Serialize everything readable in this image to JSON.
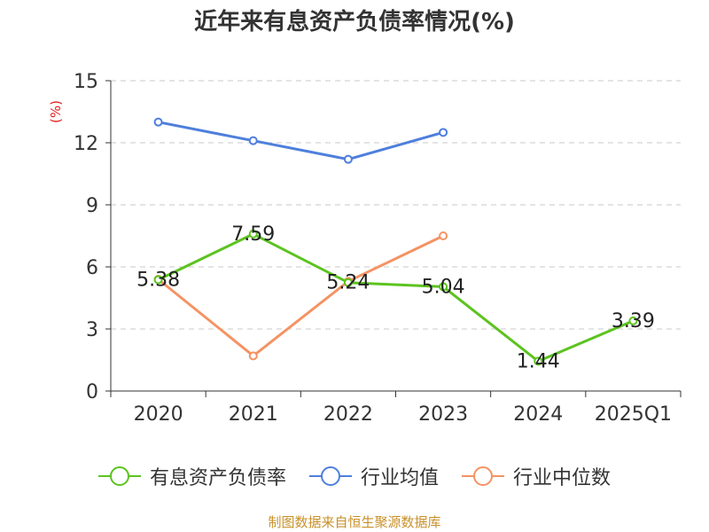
{
  "chart_data": {
    "type": "line",
    "title": "近年来有息资产负债率情况(%)",
    "ylabel": "(%)",
    "xlabel": "",
    "categories": [
      "2020",
      "2021",
      "2022",
      "2023",
      "2024",
      "2025Q1"
    ],
    "ylim": [
      0,
      15
    ],
    "yticks": [
      0,
      3,
      6,
      9,
      12,
      15
    ],
    "grid": true,
    "legend_position": "bottom",
    "series": [
      {
        "name": "有息资产负债率",
        "color": "#5cc31f",
        "values": [
          5.38,
          7.59,
          5.24,
          5.04,
          1.44,
          3.39
        ],
        "labels": [
          "5.38",
          "7.59",
          "5.24",
          "5.04",
          "1.44",
          "3.39"
        ]
      },
      {
        "name": "行业均值",
        "color": "#4e7fdc",
        "values": [
          13.0,
          12.1,
          11.2,
          12.5,
          null,
          null
        ]
      },
      {
        "name": "行业中位数",
        "color": "#f49363",
        "values": [
          5.4,
          1.7,
          5.3,
          7.5,
          null,
          null
        ]
      }
    ]
  },
  "footer": {
    "source": "制图数据来自恒生聚源数据库"
  }
}
